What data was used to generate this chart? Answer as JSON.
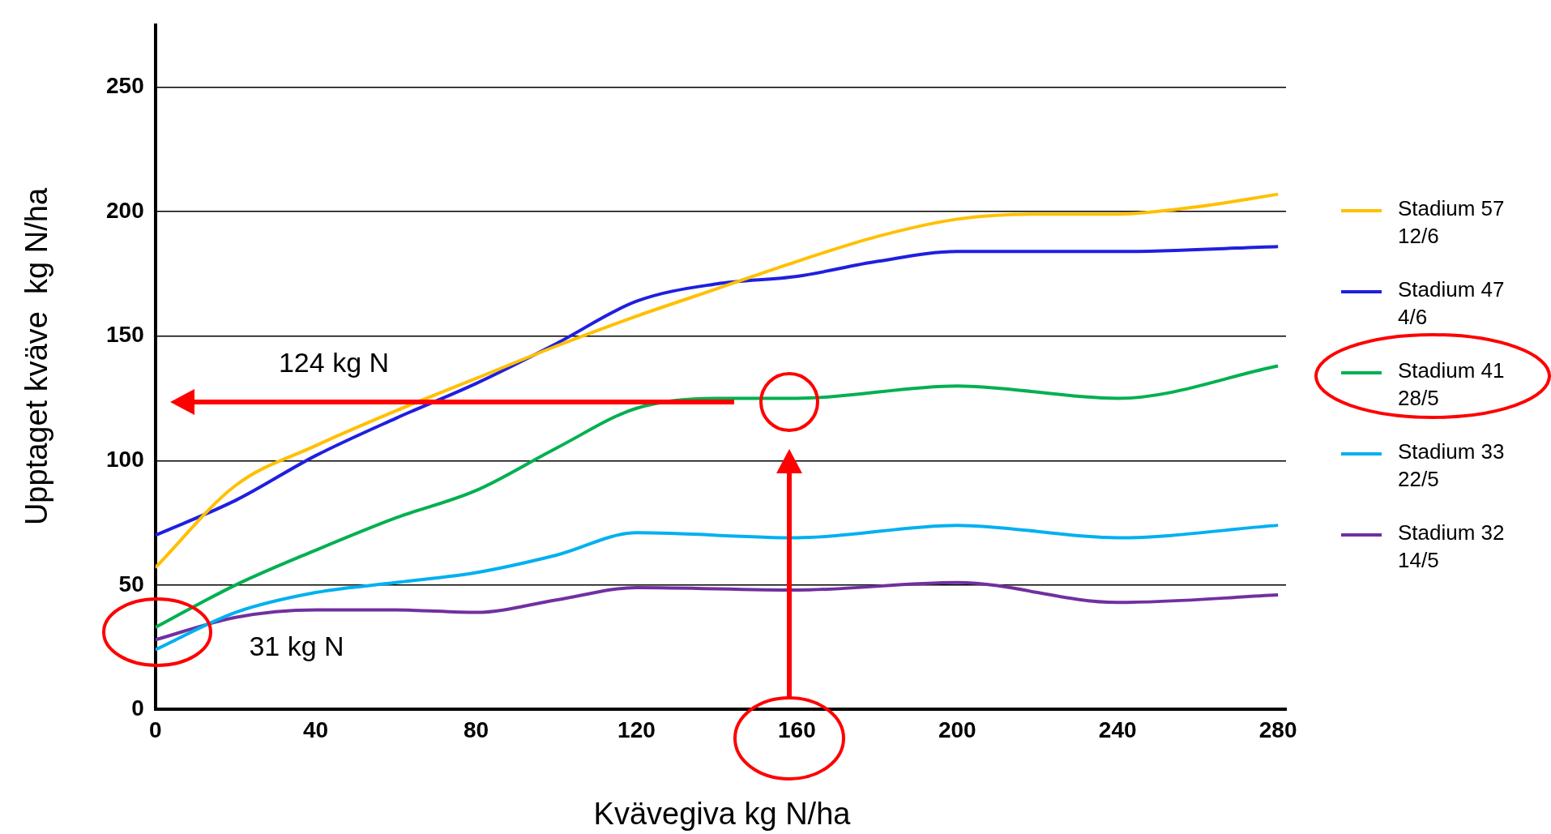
{
  "chart_data": {
    "type": "line",
    "xlabel": "Kvävegiva kg N/ha",
    "ylabel": "Upptaget kväve  kg N/ha",
    "xlim": [
      0,
      282
    ],
    "xticks": [
      0,
      40,
      80,
      120,
      160,
      200,
      240,
      280
    ],
    "ylim": [
      0,
      275
    ],
    "yticks": [
      0,
      50,
      100,
      150,
      200,
      250
    ],
    "grid": "y",
    "legend": "right",
    "marker": "none",
    "line_style": "solid",
    "annotations": [
      "124 kg N",
      "31 kg N"
    ],
    "series": [
      {
        "name": "Stadium 57\n12/6",
        "color": "#ffc000",
        "x": [
          0,
          20,
          40,
          60,
          80,
          100,
          120,
          140,
          160,
          180,
          200,
          220,
          240,
          260,
          280
        ],
        "values": [
          57,
          90,
          106,
          120,
          133,
          146,
          158,
          169,
          180,
          190,
          197,
          199,
          199,
          202,
          207
        ]
      },
      {
        "name": "Stadium 47\n4/6",
        "color": "#1f1fe0",
        "x": [
          0,
          20,
          40,
          60,
          80,
          100,
          120,
          140,
          160,
          180,
          200,
          240,
          280
        ],
        "values": [
          70,
          84,
          102,
          117,
          131,
          147,
          164,
          171,
          174,
          180,
          184,
          184,
          186
        ]
      },
      {
        "name": "Stadium 41\n28/5",
        "color": "#00b050",
        "x": [
          0,
          20,
          40,
          60,
          80,
          100,
          120,
          140,
          160,
          200,
          240,
          280
        ],
        "values": [
          33,
          50,
          64,
          77,
          88,
          105,
          121,
          125,
          125,
          130,
          125,
          138
        ]
      },
      {
        "name": "Stadium 33\n22/5",
        "color": "#00b0f0",
        "x": [
          0,
          20,
          40,
          60,
          80,
          100,
          120,
          160,
          200,
          240,
          280
        ],
        "values": [
          24,
          39,
          47,
          51,
          55,
          62,
          71,
          69,
          74,
          69,
          74
        ]
      },
      {
        "name": "Stadium 32\n14/5",
        "color": "#7030a0",
        "x": [
          0,
          20,
          40,
          60,
          80,
          100,
          120,
          160,
          200,
          240,
          280
        ],
        "values": [
          28,
          37,
          40,
          40,
          39,
          44,
          49,
          48,
          51,
          43,
          46
        ]
      }
    ]
  }
}
